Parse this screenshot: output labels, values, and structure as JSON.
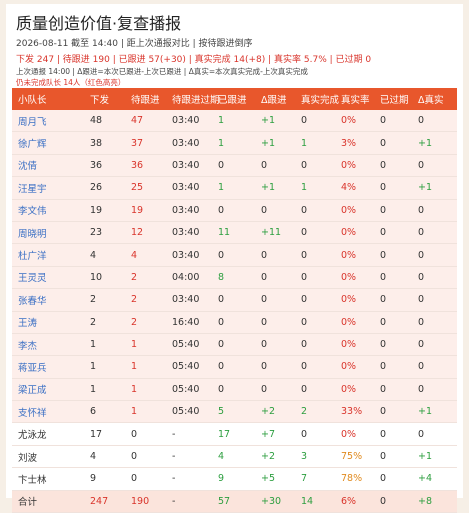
{
  "header": {
    "title": "质量创造价值·复查播报",
    "subtitle": "2026-08-11 截至 14:40 | 距上次通报对比 | 按待跟进倒序",
    "summary": "下发 247 | 待跟进 190 | 已跟进 57(+30) | 真实完成 14(+8) | 真实率 5.7% | 已过期 0",
    "note": "上次通报 14:00 | Δ跟进=本次已跟进-上次已跟进 | Δ真实=本次真实完成-上次真实完成",
    "alert": "仍未完成队长 14人（红色高亮）"
  },
  "table": {
    "columns": [
      "小队长",
      "下发",
      "待跟进",
      "待跟进过期",
      "已跟进",
      "Δ跟进",
      "真实完成",
      "真实率",
      "已过期",
      "Δ真实"
    ],
    "rows": [
      [
        "周月飞",
        "48",
        "47",
        "03:40",
        "1",
        "+1",
        "0",
        "0%",
        "0",
        "0"
      ],
      [
        "徐广辉",
        "38",
        "37",
        "03:40",
        "1",
        "+1",
        "1",
        "3%",
        "0",
        "+1"
      ],
      [
        "沈倩",
        "36",
        "36",
        "03:40",
        "0",
        "0",
        "0",
        "0%",
        "0",
        "0"
      ],
      [
        "汪星宇",
        "26",
        "25",
        "03:40",
        "1",
        "+1",
        "1",
        "4%",
        "0",
        "+1"
      ],
      [
        "李文伟",
        "19",
        "19",
        "03:40",
        "0",
        "0",
        "0",
        "0%",
        "0",
        "0"
      ],
      [
        "周晓明",
        "23",
        "12",
        "03:40",
        "11",
        "+11",
        "0",
        "0%",
        "0",
        "0"
      ],
      [
        "杜广洋",
        "4",
        "4",
        "03:40",
        "0",
        "0",
        "0",
        "0%",
        "0",
        "0"
      ],
      [
        "王灵灵",
        "10",
        "2",
        "04:00",
        "8",
        "0",
        "0",
        "0%",
        "0",
        "0"
      ],
      [
        "张春华",
        "2",
        "2",
        "03:40",
        "0",
        "0",
        "0",
        "0%",
        "0",
        "0"
      ],
      [
        "王涛",
        "2",
        "2",
        "16:40",
        "0",
        "0",
        "0",
        "0%",
        "0",
        "0"
      ],
      [
        "李杰",
        "1",
        "1",
        "05:40",
        "0",
        "0",
        "0",
        "0%",
        "0",
        "0"
      ],
      [
        "蒋亚兵",
        "1",
        "1",
        "05:40",
        "0",
        "0",
        "0",
        "0%",
        "0",
        "0"
      ],
      [
        "梁正成",
        "1",
        "1",
        "05:40",
        "0",
        "0",
        "0",
        "0%",
        "0",
        "0"
      ],
      [
        "支怀祥",
        "6",
        "1",
        "05:40",
        "5",
        "+2",
        "2",
        "33%",
        "0",
        "+1"
      ],
      [
        "尤泳龙",
        "17",
        "0",
        "-",
        "17",
        "+7",
        "0",
        "0%",
        "0",
        "0"
      ],
      [
        "刘波",
        "4",
        "0",
        "-",
        "4",
        "+2",
        "3",
        "75%",
        "0",
        "+1"
      ],
      [
        "卞士林",
        "9",
        "0",
        "-",
        "9",
        "+5",
        "7",
        "78%",
        "0",
        "+4"
      ]
    ],
    "total": [
      "合计",
      "247",
      "190",
      "-",
      "57",
      "+30",
      "14",
      "6%",
      "0",
      "+8"
    ]
  }
}
